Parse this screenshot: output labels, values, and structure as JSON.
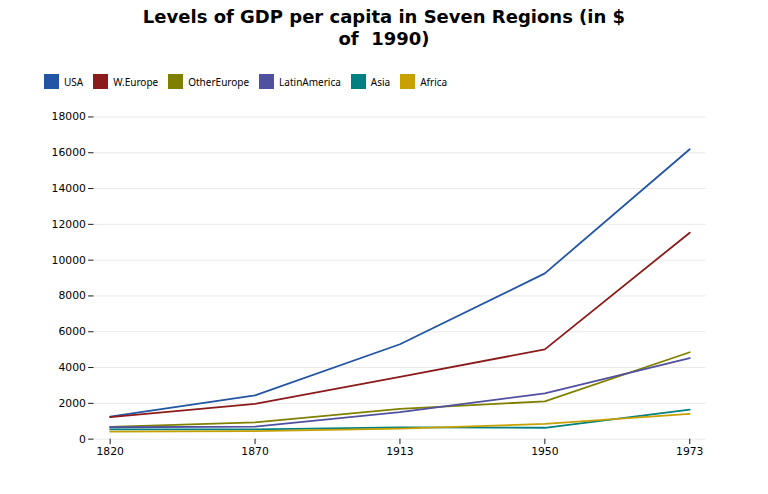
{
  "chart_data": {
    "type": "line",
    "title": "Levels of GDP per capita in Seven Regions (in $\nof  1990)",
    "categories": [
      "1820",
      "1870",
      "1913",
      "1950",
      "1973"
    ],
    "series": [
      {
        "name": "USA",
        "values": [
          1257,
          2445,
          5301,
          9261,
          16197
        ],
        "color": "#2255a4"
      },
      {
        "name": "W.Europe",
        "values": [
          1232,
          1974,
          3473,
          5013,
          11534
        ],
        "color": "#8B1a1a"
      },
      {
        "name": "OtherEurope",
        "values": [
          683,
          937,
          1695,
          2111,
          4855
        ],
        "color": "#808000"
      },
      {
        "name": "LatinAmerica",
        "values": [
          665,
          698,
          1511,
          2554,
          4531
        ],
        "color": "#5050a0"
      },
      {
        "name": "Asia",
        "values": [
          550,
          543,
          658,
          635,
          1650
        ],
        "color": "#008080"
      },
      {
        "name": "Africa",
        "values": [
          418,
          444,
          585,
          852,
          1410
        ],
        "color": "#c8a000"
      }
    ],
    "ylim": [
      0,
      18000
    ],
    "yticks": [
      0,
      2000,
      4000,
      6000,
      8000,
      10000,
      12000,
      14000,
      16000,
      18000
    ],
    "grid": true
  }
}
